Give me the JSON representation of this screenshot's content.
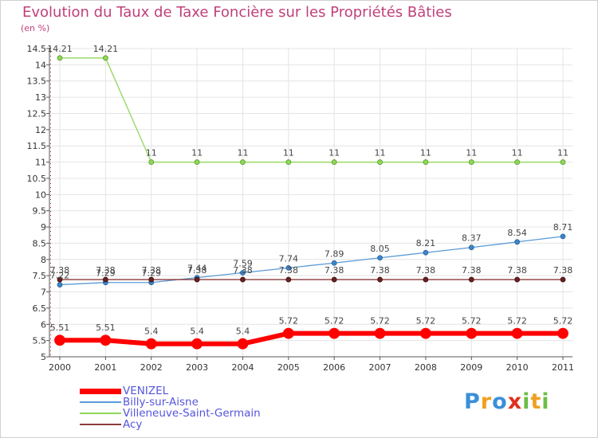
{
  "chart_data": {
    "type": "line",
    "title": "Evolution du Taux de Taxe Foncière sur les Propriétés Bâties",
    "unit_label": "(en %)",
    "xlabel": "",
    "ylabel": "",
    "categories": [
      "2000",
      "2001",
      "2002",
      "2003",
      "2004",
      "2005",
      "2006",
      "2007",
      "2008",
      "2009",
      "2010",
      "2011"
    ],
    "ylim": [
      5,
      14.5
    ],
    "yticks": [
      "5",
      "5.5",
      "6",
      "6.5",
      "7",
      "7.5",
      "8",
      "8.5",
      "9",
      "9.5",
      "10",
      "10.5",
      "11",
      "11.5",
      "12",
      "12.5",
      "13",
      "13.5",
      "14",
      "14.5"
    ],
    "series": [
      {
        "name": "VENIZEL",
        "color": "#ff0000",
        "values": [
          5.51,
          5.51,
          5.4,
          5.4,
          5.4,
          5.72,
          5.72,
          5.72,
          5.72,
          5.72,
          5.72,
          5.72
        ],
        "labels": [
          "5.51",
          "5.51",
          "5.4",
          "5.4",
          "5.4",
          "5.72",
          "5.72",
          "5.72",
          "5.72",
          "5.72",
          "5.72",
          "5.72"
        ]
      },
      {
        "name": "Billy-sur-Aisne",
        "color": "#5a9ad6",
        "values": [
          7.22,
          7.29,
          7.29,
          7.44,
          7.59,
          7.74,
          7.89,
          8.05,
          8.21,
          8.37,
          8.54,
          8.71
        ],
        "labels": [
          "7.22",
          "7.29",
          "7.29",
          "7.44",
          "7.59",
          "7.74",
          "7.89",
          "8.05",
          "8.21",
          "8.37",
          "8.54",
          "8.71"
        ]
      },
      {
        "name": "Villeneuve-Saint-Germain",
        "color": "#8fd85a",
        "values": [
          14.21,
          14.21,
          11,
          11,
          11,
          11,
          11,
          11,
          11,
          11,
          11,
          11
        ],
        "labels": [
          "14.21",
          "14.21",
          "11",
          "11",
          "11",
          "11",
          "11",
          "11",
          "11",
          "11",
          "11",
          "11"
        ]
      },
      {
        "name": "Acy",
        "color": "#8b3a3a",
        "values": [
          7.38,
          7.38,
          7.38,
          7.38,
          7.38,
          7.38,
          7.38,
          7.38,
          7.38,
          7.38,
          7.38,
          7.38
        ],
        "labels": [
          "7.38",
          "7.38",
          "7.38",
          "7.38",
          "7.38",
          "7.38",
          "7.38",
          "7.38",
          "7.38",
          "7.38",
          "7.38",
          "7.38"
        ]
      }
    ],
    "legend_position": "bottom-left"
  },
  "logo": {
    "p": "P",
    "r": "r",
    "o": "o",
    "x": "x",
    "i1": "i",
    "t": "t",
    "i2": "i"
  }
}
